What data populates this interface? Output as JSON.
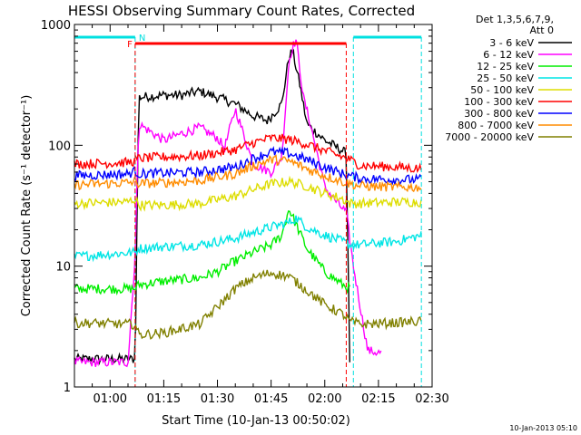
{
  "chart_data": {
    "type": "line",
    "title": "HESSI Observing Summary Count Rates, Corrected",
    "xlabel": "Start Time (10-Jan-13 00:50:02)",
    "ylabel": "Corrected Count Rate (s⁻¹ detector⁻¹)",
    "yscale": "log",
    "xlim": [
      "00:50:02",
      "02:30:00"
    ],
    "ylim": [
      1,
      1000
    ],
    "x_ticks": [
      "01:00",
      "01:15",
      "01:30",
      "01:45",
      "02:00",
      "02:15",
      "02:30"
    ],
    "y_ticks": [
      "1",
      "10",
      "100",
      "1000"
    ],
    "grid": false,
    "legend_header": [
      "Det 1,3,5,6,7,9,",
      "Att 0"
    ],
    "legend_position": "right",
    "timestamp": "10-Jan-2013 05:10",
    "annotations": {
      "night_label": "N",
      "flare_label": "F",
      "night_segments": [
        [
          "00:50:02",
          "01:07"
        ],
        [
          "02:08",
          "02:27"
        ]
      ],
      "flare_segment": [
        "01:07",
        "02:06"
      ],
      "night_color": "#00e0e0",
      "flare_color": "#ff0000"
    },
    "series": [
      {
        "name": "3 - 6 keV",
        "color": "#000000",
        "x": [
          "00:50",
          "01:07",
          "01:08",
          "01:15",
          "01:20",
          "01:25",
          "01:30",
          "01:35",
          "01:40",
          "01:44",
          "01:48",
          "01:50",
          "01:51",
          "01:53",
          "01:55",
          "02:00",
          "02:05",
          "02:06",
          "02:07"
        ],
        "y": [
          1.7,
          1.7,
          250,
          260,
          260,
          280,
          250,
          220,
          175,
          160,
          220,
          550,
          600,
          320,
          150,
          110,
          90,
          85,
          1.7
        ]
      },
      {
        "name": "6 - 12 keV",
        "color": "#ff00ff",
        "x": [
          "00:50",
          "01:05",
          "01:07",
          "01:08",
          "01:15",
          "01:20",
          "01:25",
          "01:30",
          "01:32",
          "01:35",
          "01:40",
          "01:45",
          "01:48",
          "01:50",
          "01:51",
          "01:52",
          "01:54",
          "01:56",
          "02:00",
          "02:04",
          "02:06",
          "02:08",
          "02:12",
          "02:16"
        ],
        "y": [
          1.6,
          1.6,
          12,
          150,
          110,
          125,
          140,
          115,
          95,
          200,
          70,
          60,
          80,
          500,
          650,
          750,
          250,
          150,
          45,
          32,
          28,
          10,
          2,
          1.9
        ]
      },
      {
        "name": "12 - 25 keV",
        "color": "#00ee00",
        "x": [
          "00:50",
          "01:07",
          "01:08",
          "01:15",
          "01:25",
          "01:30",
          "01:35",
          "01:40",
          "01:45",
          "01:48",
          "01:50",
          "01:52",
          "01:55",
          "02:00",
          "02:05",
          "02:07"
        ],
        "y": [
          6.5,
          6.5,
          7,
          7.5,
          8,
          9,
          11,
          13,
          15,
          18,
          30,
          22,
          14,
          9,
          7,
          6.5
        ]
      },
      {
        "name": "25 - 50 keV",
        "color": "#00e5e5",
        "x": [
          "00:50",
          "01:07",
          "01:08",
          "01:15",
          "01:25",
          "01:35",
          "01:40",
          "01:45",
          "01:50",
          "01:52",
          "01:55",
          "02:00",
          "02:05",
          "02:07",
          "02:10",
          "02:20",
          "02:27"
        ],
        "y": [
          12,
          13,
          14,
          14.5,
          15,
          17,
          19,
          21,
          23,
          25,
          21,
          18,
          16,
          15,
          15,
          16,
          18
        ]
      },
      {
        "name": "50 - 100 keV",
        "color": "#dddd00",
        "x": [
          "00:50",
          "01:05",
          "01:07",
          "01:08",
          "01:15",
          "01:25",
          "01:35",
          "01:40",
          "01:45",
          "01:50",
          "01:55",
          "02:00",
          "02:05",
          "02:07",
          "02:10",
          "02:20",
          "02:27"
        ],
        "y": [
          33,
          34,
          36,
          32,
          32,
          33,
          38,
          43,
          48,
          50,
          46,
          40,
          36,
          33,
          33,
          34,
          34
        ]
      },
      {
        "name": "100 - 300 keV",
        "color": "#ff0000",
        "x": [
          "00:50",
          "01:05",
          "01:07",
          "01:08",
          "01:15",
          "01:25",
          "01:35",
          "01:40",
          "01:45",
          "01:50",
          "01:55",
          "02:00",
          "02:05",
          "02:07",
          "02:10",
          "02:20",
          "02:27"
        ],
        "y": [
          70,
          72,
          74,
          78,
          80,
          82,
          92,
          105,
          115,
          112,
          102,
          90,
          80,
          76,
          68,
          66,
          64
        ]
      },
      {
        "name": "300 - 800 keV",
        "color": "#0000ff",
        "x": [
          "00:50",
          "01:05",
          "01:07",
          "01:08",
          "01:15",
          "01:25",
          "01:35",
          "01:40",
          "01:45",
          "01:50",
          "01:55",
          "02:00",
          "02:05",
          "02:07",
          "02:10",
          "02:20",
          "02:27"
        ],
        "y": [
          56,
          58,
          61,
          58,
          59,
          60,
          66,
          78,
          88,
          86,
          76,
          66,
          58,
          56,
          53,
          52,
          52
        ]
      },
      {
        "name": "800 - 7000 keV",
        "color": "#ff8c00",
        "x": [
          "00:50",
          "01:05",
          "01:07",
          "01:08",
          "01:15",
          "01:25",
          "01:35",
          "01:40",
          "01:45",
          "01:50",
          "01:55",
          "02:00",
          "02:05",
          "02:07",
          "02:10",
          "02:20",
          "02:27"
        ],
        "y": [
          47,
          49,
          50,
          48,
          49,
          51,
          58,
          68,
          76,
          74,
          64,
          56,
          50,
          48,
          46,
          45,
          45
        ]
      },
      {
        "name": "7000 - 20000 keV",
        "color": "#808000",
        "x": [
          "00:50",
          "01:07",
          "01:08",
          "01:15",
          "01:25",
          "01:30",
          "01:35",
          "01:40",
          "01:45",
          "01:50",
          "01:55",
          "02:00",
          "02:05",
          "02:07",
          "02:10",
          "02:20",
          "02:27"
        ],
        "y": [
          3.4,
          3.3,
          2.7,
          2.8,
          3.3,
          4.6,
          6.5,
          8.0,
          8.8,
          8.2,
          6.3,
          4.8,
          4.0,
          3.5,
          3.3,
          3.4,
          3.5
        ]
      }
    ]
  }
}
